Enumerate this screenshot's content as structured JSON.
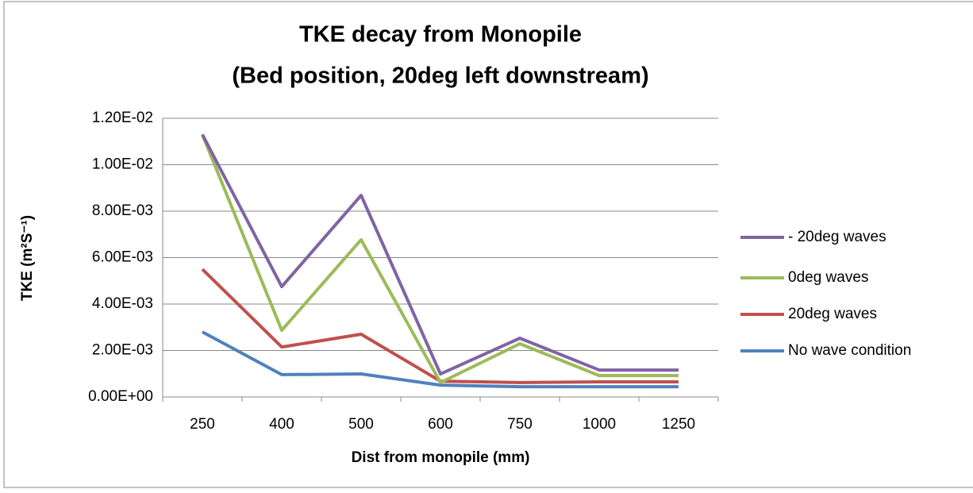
{
  "chart_data": {
    "type": "line",
    "title": "TKE decay from Monopile",
    "subtitle": "(Bed position, 20deg left downstream)",
    "x_label": "Dist from monopile (mm)",
    "y_label": "TKE (m²S⁻¹)",
    "categories": [
      "250",
      "400",
      "500",
      "600",
      "750",
      "1000",
      "1250"
    ],
    "series": [
      {
        "name": "- 20deg waves",
        "color": "#8064a2",
        "values": [
          0.0113,
          0.00475,
          0.00868,
          0.00099,
          0.00253,
          0.00116,
          0.00116
        ]
      },
      {
        "name": "0deg waves",
        "color": "#9bbb59",
        "values": [
          0.0113,
          0.00287,
          0.00677,
          0.00062,
          0.00229,
          0.00092,
          0.00092
        ]
      },
      {
        "name": "20deg waves",
        "color": "#c0504d",
        "values": [
          0.0055,
          0.00215,
          0.0027,
          0.00068,
          0.00062,
          0.00065,
          0.00065
        ]
      },
      {
        "name": "No wave condition",
        "color": "#4f81bd",
        "values": [
          0.0028,
          0.00096,
          0.00099,
          0.00051,
          0.00044,
          0.00044,
          0.00044
        ]
      }
    ],
    "ylim": [
      0,
      0.012
    ],
    "yticks": [
      {
        "value": 0,
        "label": "0.00E+00"
      },
      {
        "value": 0.002,
        "label": "2.00E-03"
      },
      {
        "value": 0.004,
        "label": "4.00E-03"
      },
      {
        "value": 0.006,
        "label": "6.00E-03"
      },
      {
        "value": 0.008,
        "label": "8.00E-03"
      },
      {
        "value": 0.01,
        "label": "1.00E-02"
      },
      {
        "value": 0.012,
        "label": "1.20E-02"
      }
    ],
    "grid": true,
    "legend": "right"
  }
}
